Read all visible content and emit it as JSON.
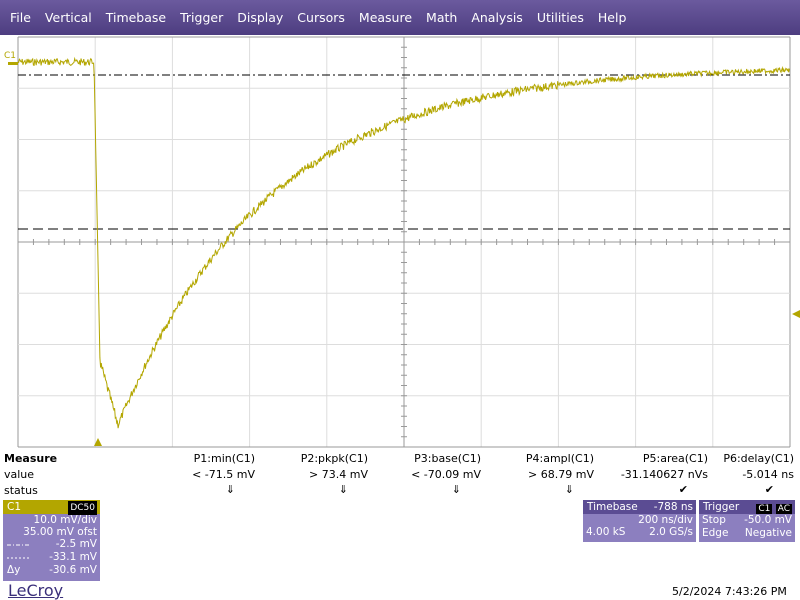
{
  "menu": [
    "File",
    "Vertical",
    "Timebase",
    "Trigger",
    "Display",
    "Cursors",
    "Measure",
    "Math",
    "Analysis",
    "Utilities",
    "Help"
  ],
  "trace_label": "C1",
  "measure": {
    "title": "Measure",
    "row_labels": [
      "value",
      "status"
    ],
    "columns": [
      {
        "header": "P1:min(C1)",
        "value": "< -71.5 mV",
        "status": "⇓"
      },
      {
        "header": "P2:pkpk(C1)",
        "value": "> 73.4 mV",
        "status": "⇓"
      },
      {
        "header": "P3:base(C1)",
        "value": "< -70.09 mV",
        "status": "⇓"
      },
      {
        "header": "P4:ampl(C1)",
        "value": "> 68.79 mV",
        "status": "⇓"
      },
      {
        "header": "P5:area(C1)",
        "value": "-31.140627 nVs",
        "status": "✔"
      },
      {
        "header": "P6:delay(C1)",
        "value": "-5.014 ns",
        "status": "✔"
      }
    ]
  },
  "channel": {
    "name": "C1",
    "coupling": "DC50",
    "scale": "10.0 mV/div",
    "offset": "35.00 mV ofst",
    "cursor1": "-2.5 mV",
    "cursor2": "-33.1 mV",
    "delta_label": "Δy",
    "delta": "-30.6 mV"
  },
  "timebase": {
    "title": "Timebase",
    "delay": "-788 ns",
    "per_div": "200 ns/div",
    "samples": "4.00 kS",
    "rate": "2.0 GS/s"
  },
  "trigger": {
    "title": "Trigger",
    "channel": "C1",
    "coupling": "AC",
    "mode": "Stop",
    "level": "-50.0 mV",
    "type": "Edge",
    "slope": "Negative"
  },
  "brand": "LeCroy",
  "timestamp": "5/2/2024 7:43:26 PM"
}
